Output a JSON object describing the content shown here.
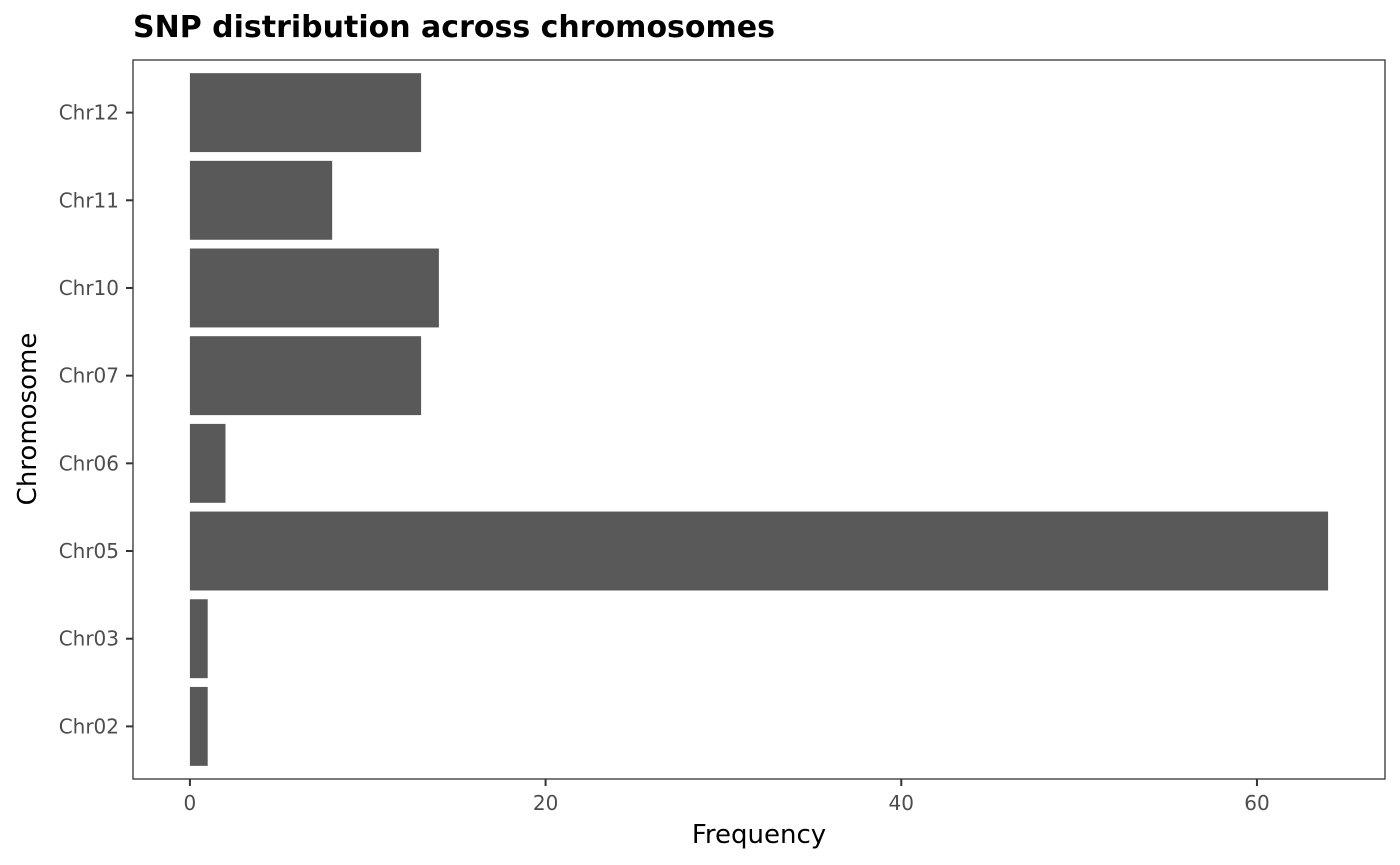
{
  "chart_data": {
    "type": "bar",
    "orientation": "horizontal",
    "title": "SNP distribution across chromosomes",
    "xlabel": "Frequency",
    "ylabel": "Chromosome",
    "categories": [
      "Chr02",
      "Chr03",
      "Chr05",
      "Chr06",
      "Chr07",
      "Chr10",
      "Chr11",
      "Chr12"
    ],
    "values": [
      1,
      1,
      64,
      2,
      13,
      14,
      8,
      13
    ],
    "xlim": [
      -3.2,
      67.2
    ],
    "xticks": [
      0,
      20,
      40,
      60
    ],
    "grid": false,
    "legend": "none",
    "colors": {
      "bar": "#595959",
      "panel_border": "#333333",
      "tick_text": "#4d4d4d"
    }
  }
}
